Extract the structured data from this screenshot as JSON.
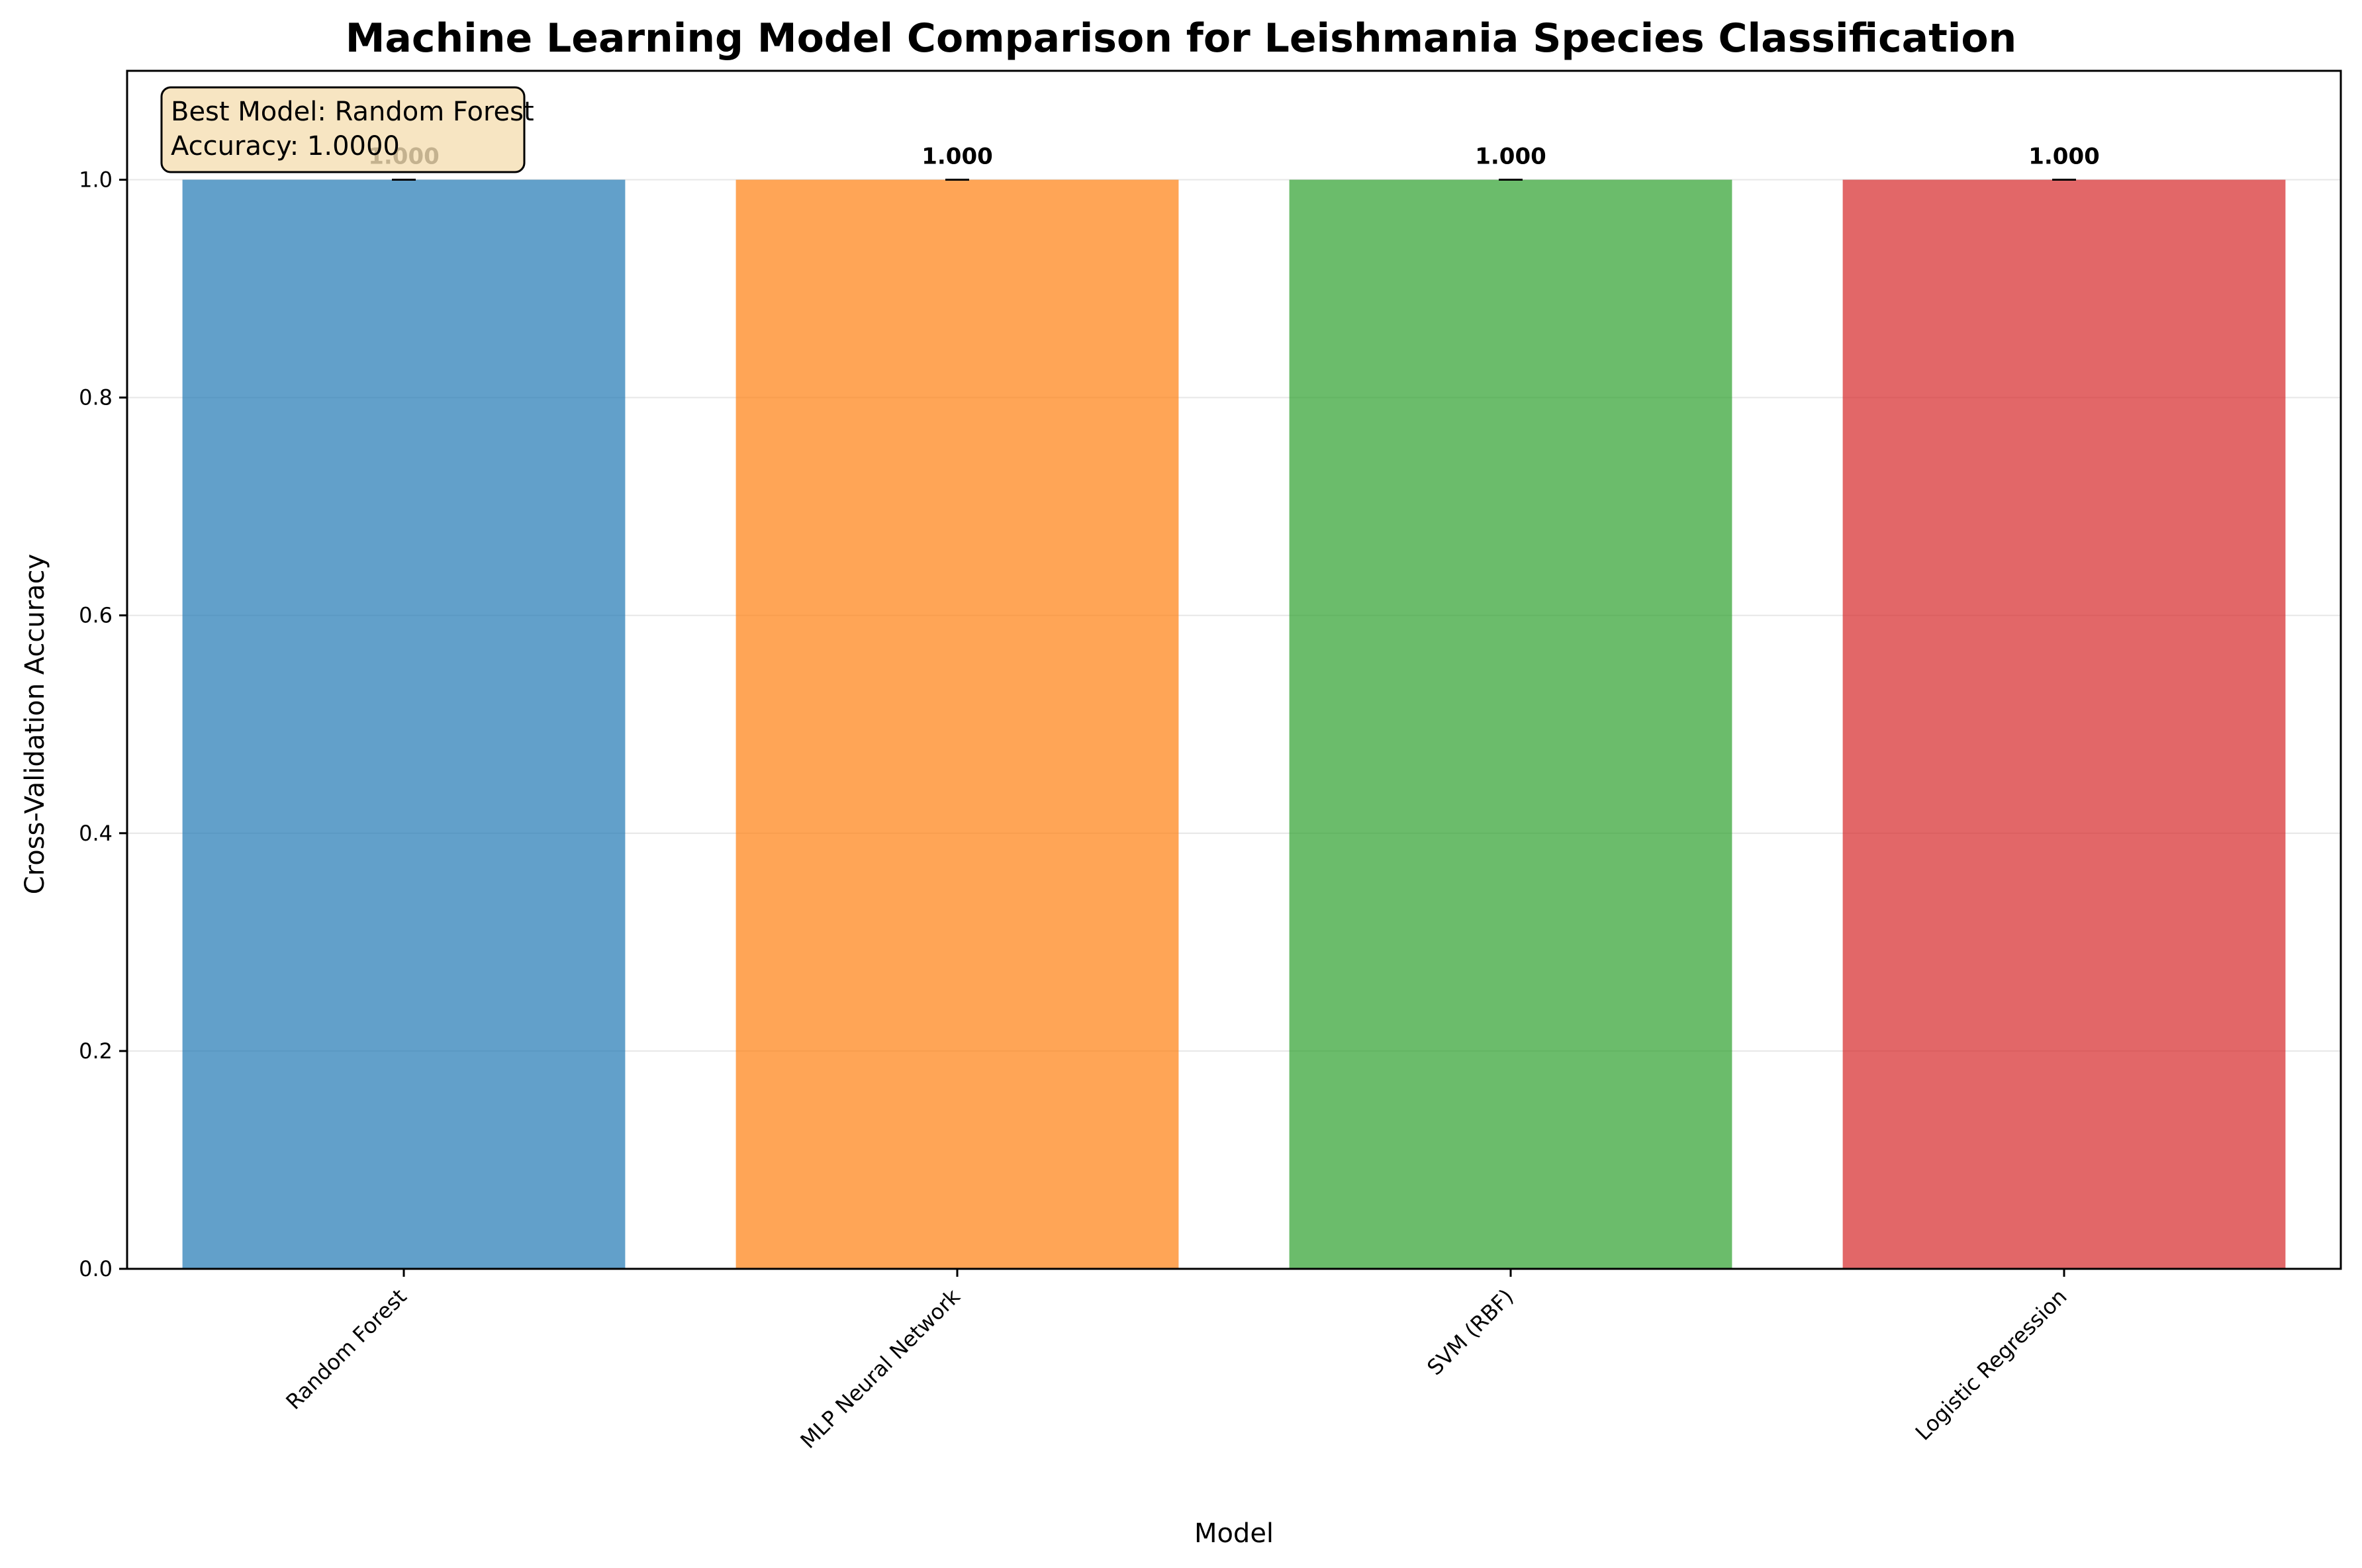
{
  "chart_data": {
    "type": "bar",
    "title": "Machine Learning Model Comparison for Leishmania Species Classification",
    "xlabel": "Model",
    "ylabel": "Cross-Validation Accuracy",
    "categories": [
      "Random Forest",
      "MLP Neural Network",
      "SVM (RBF)",
      "Logistic Regression"
    ],
    "values": [
      1.0,
      1.0,
      1.0,
      1.0
    ],
    "errors": [
      0.0,
      0.0,
      0.0,
      0.0
    ],
    "value_labels": [
      "1.000",
      "1.000",
      "1.000",
      "1.000"
    ],
    "colors": [
      "#1f77b4",
      "#ff7f0e",
      "#2ca02c",
      "#d62728"
    ],
    "ylim": [
      0,
      1.1
    ],
    "yticks": [
      0.0,
      0.2,
      0.4,
      0.6,
      0.8,
      1.0
    ],
    "ytick_labels": [
      "0.0",
      "0.2",
      "0.4",
      "0.6",
      "0.8",
      "1.0"
    ],
    "grid": "y",
    "annotation": {
      "line1": "Best Model: Random Forest",
      "line2": "Accuracy: 1.0000",
      "background": "#f5deb3"
    }
  }
}
